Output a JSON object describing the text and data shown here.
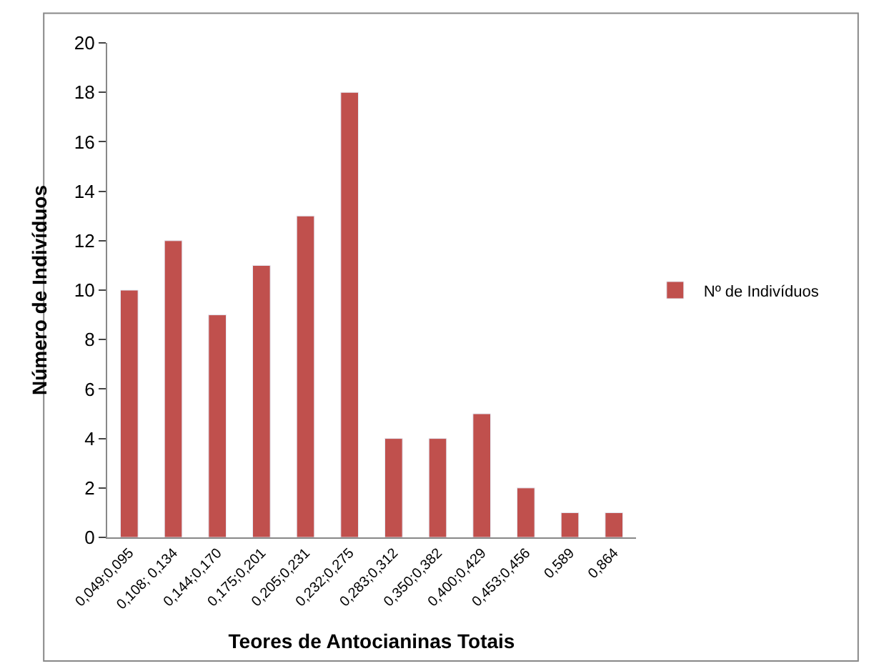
{
  "chart_data": {
    "type": "bar",
    "xlabel": "Teores de Antocianinas Totais",
    "ylabel": "Número de Indivíduos",
    "categories": [
      "0,049;0,095",
      "0,108; 0,134",
      "0,144;0,170",
      "0,175;0,201",
      "0,205;0,231",
      "0,232;0,275",
      "0,283;0,312",
      "0,350;0,382",
      "0,400;0,429",
      "0,453;0,456",
      "0,589",
      "0,864"
    ],
    "series": [
      {
        "name": "Nº de Indivíduos",
        "color": "#c0504d",
        "values": [
          10,
          12,
          9,
          11,
          13,
          18,
          4,
          4,
          5,
          2,
          1,
          1
        ]
      }
    ],
    "ylim": [
      0,
      20
    ],
    "yticks": [
      0,
      2,
      4,
      6,
      8,
      10,
      12,
      14,
      16,
      18,
      20
    ],
    "legend": "right"
  }
}
